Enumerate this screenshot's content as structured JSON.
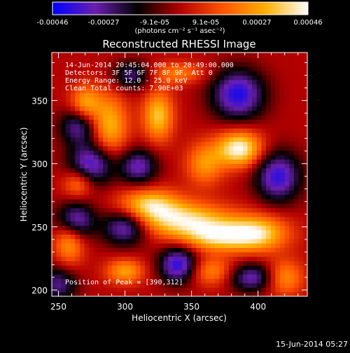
{
  "chart_data": {
    "type": "heatmap",
    "title": "Reconstructed RHESSI Image",
    "xlabel": "Heliocentric X (arcsec)",
    "ylabel": "Heliocentric Y (arcsec)",
    "xlim": [
      245,
      437
    ],
    "ylim": [
      195,
      388
    ],
    "x_ticks": [
      250,
      300,
      350,
      400
    ],
    "y_ticks": [
      200,
      250,
      300,
      350
    ],
    "colorbar": {
      "unit_label": "(photons cm⁻² s⁻¹ asec⁻²)",
      "range": [
        -0.00046,
        0.00046
      ],
      "tick_labels": [
        "-0.00046",
        "-0.00027",
        "-9.1e-05",
        "9.1e-05",
        "0.00027",
        "0.00046"
      ],
      "colormap": [
        "#0000ff",
        "#6a1fb0",
        "#000000",
        "#b40000",
        "#ff5500",
        "#ffb000",
        "#ffffff"
      ]
    },
    "annotations": [
      "14-Jun-2014 20:45:04.000 to 20:49:00.000",
      "Detectors: 3F 5F 6F 7F 8F 9F, Att 0",
      "Energy Range: 12.0 - 25.0 keV",
      "Clean    Total counts: 7.90E+03"
    ],
    "peak_label": "Position of Peak = [390,312]",
    "peak_position": [
      390,
      312
    ],
    "sources": [
      {
        "x": 386,
        "y": 312,
        "peak": 1.0,
        "sx": 12,
        "sy": 10
      },
      {
        "x": 345,
        "y": 255,
        "peak": 0.85,
        "sx": 25,
        "sy": 10
      },
      {
        "x": 400,
        "y": 245,
        "peak": 0.8,
        "sx": 16,
        "sy": 10
      },
      {
        "x": 318,
        "y": 268,
        "peak": 0.75,
        "sx": 16,
        "sy": 9
      },
      {
        "x": 370,
        "y": 242,
        "peak": 0.7,
        "sx": 18,
        "sy": 8
      },
      {
        "x": 325,
        "y": 338,
        "peak": 0.75,
        "sx": 8,
        "sy": 14
      },
      {
        "x": 288,
        "y": 330,
        "peak": 0.7,
        "sx": 10,
        "sy": 18
      },
      {
        "x": 270,
        "y": 348,
        "peak": 0.6,
        "sx": 8,
        "sy": 10
      },
      {
        "x": 258,
        "y": 240,
        "peak": 0.65,
        "sx": 8,
        "sy": 14
      },
      {
        "x": 300,
        "y": 215,
        "peak": 0.6,
        "sx": 10,
        "sy": 7
      },
      {
        "x": 360,
        "y": 300,
        "peak": 0.55,
        "sx": 10,
        "sy": 12
      },
      {
        "x": 420,
        "y": 210,
        "peak": 0.55,
        "sx": 10,
        "sy": 10
      },
      {
        "x": 340,
        "y": 372,
        "peak": 0.45,
        "sx": 14,
        "sy": 6
      },
      {
        "x": 365,
        "y": 215,
        "peak": 0.5,
        "sx": 12,
        "sy": 8
      },
      {
        "x": 265,
        "y": 285,
        "peak": 0.55,
        "sx": 8,
        "sy": 8
      },
      {
        "x": 262,
        "y": 255,
        "peak": -0.9,
        "sx": 10,
        "sy": 10
      },
      {
        "x": 300,
        "y": 250,
        "peak": -0.8,
        "sx": 12,
        "sy": 10
      },
      {
        "x": 275,
        "y": 300,
        "peak": -0.85,
        "sx": 12,
        "sy": 12
      },
      {
        "x": 310,
        "y": 298,
        "peak": -0.7,
        "sx": 10,
        "sy": 10
      },
      {
        "x": 265,
        "y": 330,
        "peak": -0.65,
        "sx": 10,
        "sy": 10
      },
      {
        "x": 385,
        "y": 355,
        "peak": -0.9,
        "sx": 14,
        "sy": 14
      },
      {
        "x": 415,
        "y": 290,
        "peak": -0.85,
        "sx": 12,
        "sy": 14
      },
      {
        "x": 340,
        "y": 220,
        "peak": -0.9,
        "sx": 10,
        "sy": 10
      },
      {
        "x": 395,
        "y": 210,
        "peak": -0.7,
        "sx": 12,
        "sy": 8
      },
      {
        "x": 305,
        "y": 370,
        "peak": -0.55,
        "sx": 10,
        "sy": 8
      },
      {
        "x": 250,
        "y": 205,
        "peak": -0.6,
        "sx": 10,
        "sy": 10
      }
    ]
  },
  "footer_timestamp": "15-Jun-2014 05:27"
}
